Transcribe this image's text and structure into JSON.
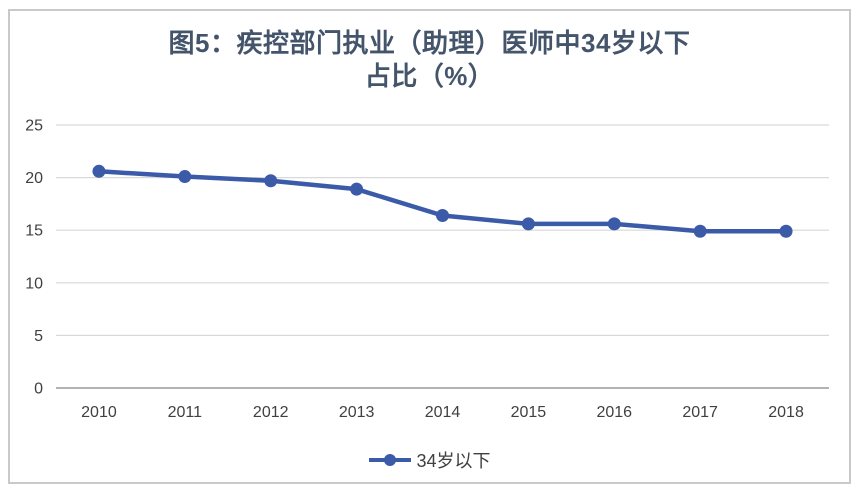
{
  "chart_data": {
    "type": "line",
    "title_lines": [
      "图5：疾控部门执业（助理）医师中34岁以下",
      "占比（%）"
    ],
    "categories": [
      "2010",
      "2011",
      "2012",
      "2013",
      "2014",
      "2015",
      "2016",
      "2017",
      "2018"
    ],
    "series": [
      {
        "name": "34岁以下",
        "values": [
          20.6,
          20.1,
          19.7,
          18.9,
          16.4,
          15.6,
          15.6,
          14.9,
          14.9
        ]
      }
    ],
    "xlabel": "",
    "ylabel": "",
    "ylim": [
      0,
      25
    ],
    "yticks": [
      0,
      5,
      10,
      15,
      20,
      25
    ],
    "grid": true,
    "legend_position": "bottom"
  },
  "colors": {
    "accent": "#3b5ba9",
    "title": "#44546a",
    "tick_label": "#404040",
    "gridline": "#d9d9d9",
    "axis_line": "#b3b3b3",
    "border": "#c9c9c9",
    "background": "#ffffff"
  }
}
